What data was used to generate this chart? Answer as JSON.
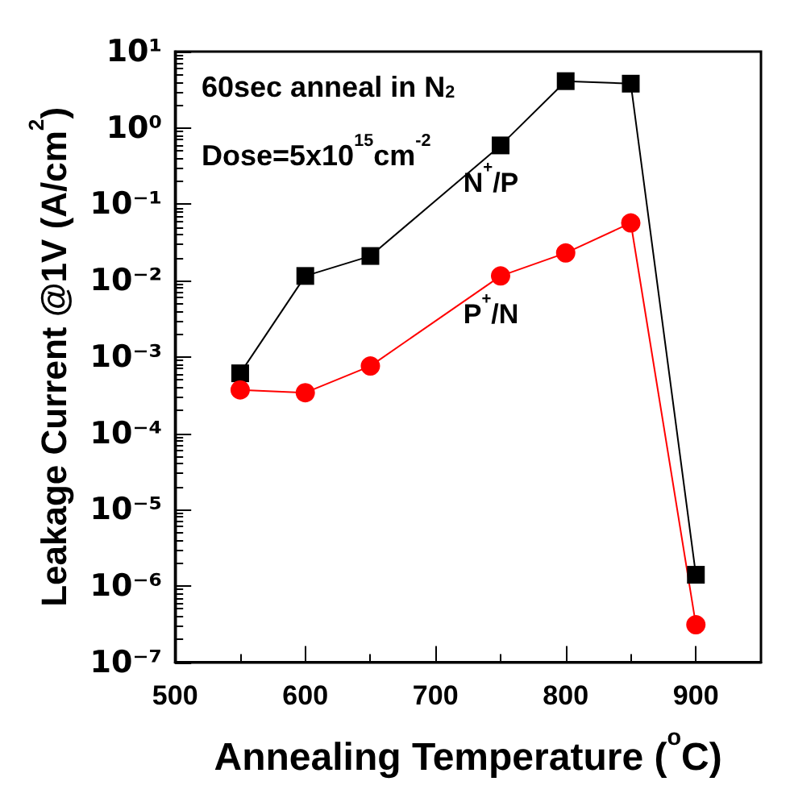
{
  "chart_data": {
    "type": "line",
    "xlabel": "Annealing Temperature ($^{o}$C)",
    "ylabel": "Leakage Current @1V (A/cm$^{2}$)",
    "annotations": [
      "60sec anneal in N$_{2}$",
      "Dose=5x10$^{15}$cm$^{-2}$"
    ],
    "x": [
      550,
      600,
      650,
      750,
      800,
      850,
      900
    ],
    "series": [
      {
        "name": "N$^{+}$/P",
        "color": "#000000",
        "marker": "square",
        "values": [
          0.00061,
          0.0115,
          0.021,
          0.59,
          4.1,
          3.8,
          1.4e-06
        ]
      },
      {
        "name": "P$^{+}$/N",
        "color": "#ff0000",
        "marker": "circle",
        "values": [
          0.00037,
          0.00034,
          0.00076,
          0.0115,
          0.023,
          0.057,
          3.1e-07
        ]
      }
    ],
    "log": "y",
    "xlim": [
      500,
      950
    ],
    "xticks": [
      500,
      600,
      700,
      800,
      900
    ],
    "ylim": [
      1e-07,
      10
    ],
    "yticks": [
      {
        "value": 1e-07,
        "label": "10⁻⁷"
      },
      {
        "value": 1e-06,
        "label": "10⁻⁶"
      },
      {
        "value": 1e-05,
        "label": "10⁻⁵"
      },
      {
        "value": 0.0001,
        "label": "10⁻⁴"
      },
      {
        "value": 0.001,
        "label": "10⁻³"
      },
      {
        "value": 0.01,
        "label": "10⁻²"
      },
      {
        "value": 0.1,
        "label": "10⁻¹"
      },
      {
        "value": 1,
        "label": "10⁰"
      },
      {
        "value": 10,
        "label": "10¹"
      }
    ],
    "grid": false,
    "legend": false
  }
}
